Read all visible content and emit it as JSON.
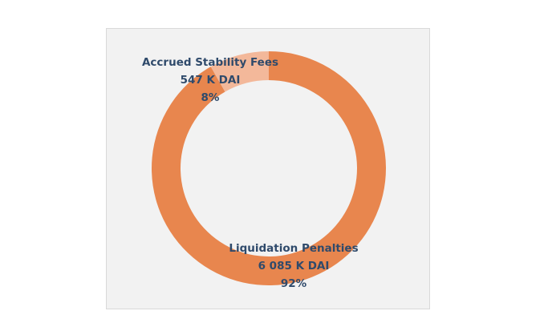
{
  "chart_data": {
    "type": "pie",
    "title": "",
    "slices": [
      {
        "label": "Liquidation Penalties",
        "value_text": "6 085 K DAI",
        "percent_text": "92%",
        "value": 6085,
        "percent": 92,
        "color": "#e8864e"
      },
      {
        "label": "Accrued Stability Fees",
        "value_text": "547 K DAI",
        "percent_text": "8%",
        "value": 547,
        "percent": 8,
        "color": "#f3b89a"
      }
    ],
    "colors": {
      "frame_background": "#f2f2f2",
      "frame_border": "#d9d9d9",
      "label_text": "#2f4a6b"
    }
  }
}
